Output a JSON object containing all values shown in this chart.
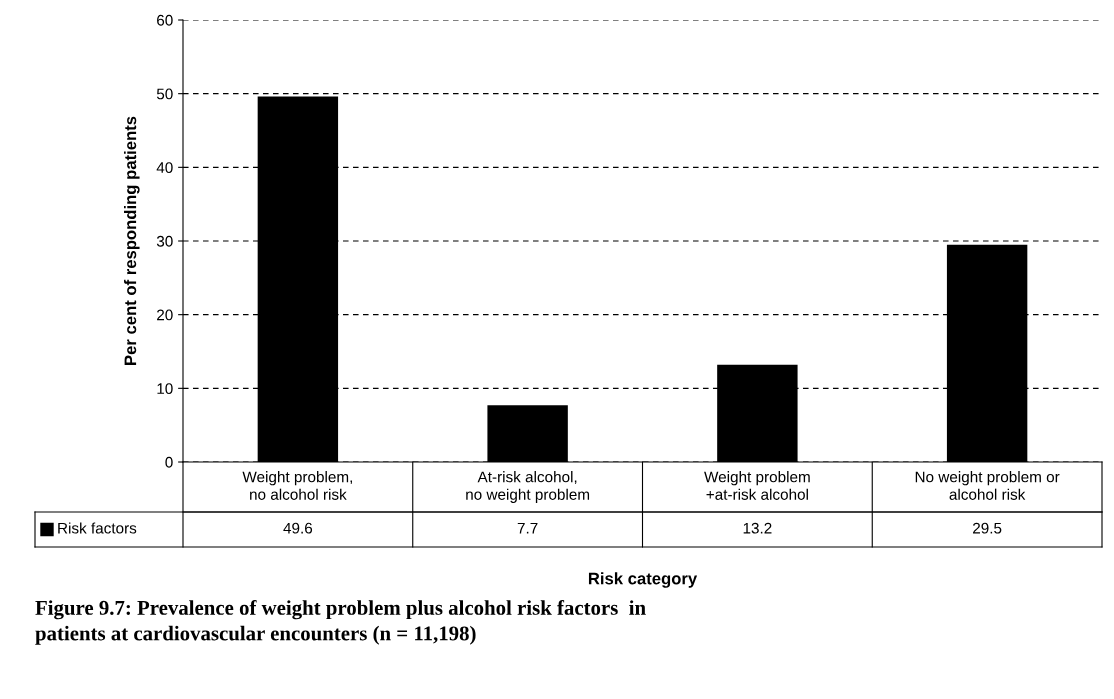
{
  "chart_data": {
    "type": "bar",
    "title": "Figure 9.7: Prevalence of weight problem plus alcohol risk factors  in\npatients at cardiovascular encounters (n = 11,198)",
    "xlabel": "Risk category",
    "ylabel": "Per cent of responding patients",
    "categories": [
      "Weight problem,\nno alcohol risk",
      "At-risk alcohol,\nno weight problem",
      "Weight problem\n+at-risk alcohol",
      "No weight problem or\nalcohol risk"
    ],
    "series": [
      {
        "name": "Risk factors",
        "color": "#000000",
        "values": [
          49.6,
          7.7,
          13.2,
          29.5
        ]
      }
    ],
    "ylim": [
      0,
      60
    ],
    "yticks": [
      0,
      10,
      20,
      30,
      40,
      50,
      60
    ],
    "grid": "y",
    "data_labels": true,
    "legend": "bottom left"
  }
}
